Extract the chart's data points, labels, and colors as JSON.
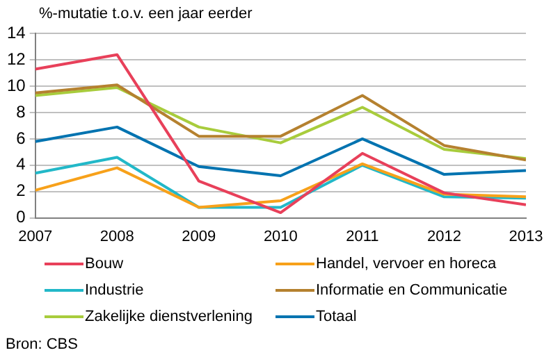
{
  "chart_data": {
    "type": "line",
    "ylabel": "%-mutatie t.o.v. een jaar eerder",
    "annotations": [
      "Bron: CBS"
    ],
    "x": [
      2007,
      2008,
      2009,
      2010,
      2011,
      2012,
      2013
    ],
    "xlim": [
      2007,
      2013
    ],
    "xticks": [
      2007,
      2008,
      2009,
      2010,
      2011,
      2012,
      2013
    ],
    "ylim": [
      0,
      14
    ],
    "yticks": [
      0,
      2,
      4,
      6,
      8,
      10,
      12,
      14
    ],
    "grid": "y",
    "legend": "bottom",
    "marker": "none",
    "line_style": "solid",
    "series": [
      {
        "name": "Bouw",
        "color": "#e8405a",
        "values": [
          11.3,
          12.4,
          2.8,
          0.4,
          4.9,
          1.9,
          1.0
        ]
      },
      {
        "name": "Handel, vervoer en horeca",
        "color": "#f7a11a",
        "values": [
          2.1,
          3.8,
          0.8,
          1.3,
          4.1,
          1.8,
          1.6
        ]
      },
      {
        "name": "Industrie",
        "color": "#22b8c8",
        "values": [
          3.4,
          4.6,
          0.8,
          0.8,
          4.0,
          1.6,
          1.5
        ]
      },
      {
        "name": "Informatie en Communicatie",
        "color": "#b5812f",
        "values": [
          9.5,
          10.1,
          6.2,
          6.2,
          9.3,
          5.5,
          4.4
        ]
      },
      {
        "name": "Zakelijke dienstverlening",
        "color": "#a8cc3c",
        "values": [
          9.3,
          9.9,
          6.9,
          5.7,
          8.4,
          5.2,
          4.5
        ]
      },
      {
        "name": "Totaal",
        "color": "#0073b0",
        "values": [
          5.8,
          6.9,
          3.9,
          3.2,
          6.0,
          3.3,
          3.6
        ]
      }
    ]
  }
}
